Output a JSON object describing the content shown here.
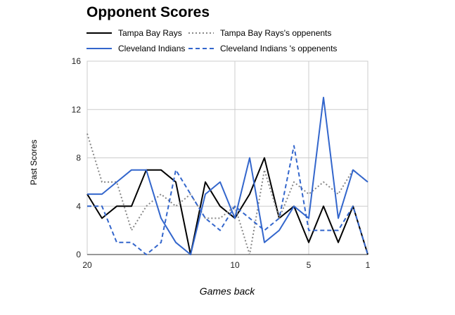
{
  "chart_data": {
    "type": "line",
    "title": "Opponent Scores",
    "xlabel": "Games back",
    "ylabel": "Past Scores",
    "x": [
      20,
      19,
      18,
      17,
      16,
      15,
      14,
      13,
      12,
      11,
      10,
      9,
      8,
      7,
      6,
      5,
      4,
      3,
      2,
      1
    ],
    "xlim": [
      20,
      1
    ],
    "ylim": [
      0,
      16
    ],
    "x_ticks": [
      "20",
      "10",
      "5",
      "1"
    ],
    "y_ticks": [
      "0",
      "4",
      "8",
      "12",
      "16"
    ],
    "grid": true,
    "legend_position": "top",
    "series": [
      {
        "name": "Tampa Bay Rays",
        "color": "#000000",
        "dash": "solid",
        "values": [
          5,
          3,
          4,
          4,
          7,
          7,
          6,
          0,
          6,
          4,
          3,
          5,
          8,
          3,
          4,
          1,
          4,
          1,
          4,
          0
        ]
      },
      {
        "name": "Tampa Bay Rays's oppenents",
        "color": "#888888",
        "dash": "dotted",
        "values": [
          10,
          6,
          6,
          2,
          4,
          5,
          4,
          5,
          3,
          3,
          4,
          0,
          7,
          3,
          6,
          5,
          6,
          5,
          7,
          6
        ]
      },
      {
        "name": "Cleveland Indians",
        "color": "#3366cc",
        "dash": "solid",
        "values": [
          5,
          5,
          6,
          7,
          7,
          3,
          1,
          0,
          5,
          6,
          3,
          8,
          1,
          2,
          4,
          3,
          13,
          3,
          7,
          6
        ]
      },
      {
        "name": "Cleveland Indians 's oppenents",
        "color": "#3366cc",
        "dash": "dashed",
        "values": [
          4,
          4,
          1,
          1,
          0,
          1,
          7,
          5,
          3,
          2,
          4,
          3,
          2,
          3,
          9,
          2,
          2,
          2,
          4,
          0
        ]
      }
    ]
  }
}
